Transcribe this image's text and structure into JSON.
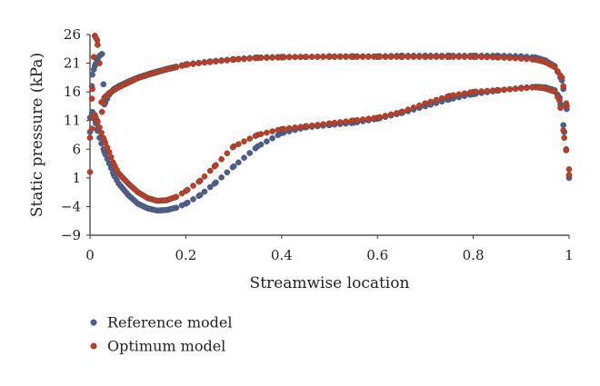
{
  "chart_data": {
    "type": "scatter",
    "xlabel": "Streamwise location",
    "ylabel": "Static pressure (kPa)",
    "xlim": [
      0,
      1
    ],
    "ylim": [
      -9,
      26
    ],
    "xticks": [
      0,
      0.2,
      0.4,
      0.6,
      0.8,
      1
    ],
    "xtick_labels": [
      "0",
      "0.2",
      "0.4",
      "0.6",
      "0.8",
      "1"
    ],
    "yticks": [
      26,
      21,
      16,
      11,
      6,
      1,
      -4,
      -9
    ],
    "ytick_labels": [
      "26",
      "21",
      "16",
      "11",
      "6",
      "1",
      "−4",
      "−9"
    ],
    "grid": false,
    "legend_position": "bottom-left",
    "series": [
      {
        "name": "Reference model",
        "color": "#4a5f91",
        "upper": {
          "x": [
            0.0,
            0.005,
            0.01,
            0.015,
            0.02,
            0.025,
            0.03,
            0.04,
            0.05,
            0.06,
            0.08,
            0.1,
            0.13,
            0.16,
            0.2,
            0.25,
            0.3,
            0.35,
            0.4,
            0.45,
            0.5,
            0.55,
            0.6,
            0.65,
            0.7,
            0.75,
            0.8,
            0.85,
            0.9,
            0.93,
            0.95,
            0.97,
            0.985,
            0.995,
            1.0
          ],
          "y": [
            9,
            19,
            20.5,
            21.5,
            22.3,
            22.6,
            13.8,
            15.5,
            16.5,
            17,
            17.8,
            18.5,
            19.3,
            20,
            20.8,
            21.3,
            21.7,
            22,
            22.1,
            22.1,
            22.2,
            22.2,
            22.2,
            22.3,
            22.3,
            22.3,
            22.3,
            22.3,
            22.2,
            22,
            21.5,
            20.5,
            18,
            13,
            1
          ]
        },
        "lower": {
          "x": [
            0.0,
            0.005,
            0.01,
            0.015,
            0.02,
            0.03,
            0.04,
            0.05,
            0.06,
            0.08,
            0.1,
            0.12,
            0.14,
            0.16,
            0.18,
            0.2,
            0.23,
            0.26,
            0.3,
            0.35,
            0.4,
            0.45,
            0.5,
            0.55,
            0.6,
            0.65,
            0.7,
            0.75,
            0.8,
            0.85,
            0.9,
            0.93,
            0.95,
            0.97,
            0.98,
            0.99,
            1.0
          ],
          "y": [
            11.5,
            12.5,
            11.2,
            9.5,
            8,
            5.5,
            3.5,
            1.5,
            0,
            -2,
            -3.5,
            -4.3,
            -4.7,
            -4.6,
            -4.2,
            -3.5,
            -2,
            0,
            3,
            6.5,
            8.8,
            9.8,
            10.2,
            10.6,
            11.3,
            12.3,
            13.5,
            14.7,
            15.6,
            16.2,
            16.7,
            16.9,
            16.8,
            16.3,
            15,
            9,
            1.5
          ]
        }
      },
      {
        "name": "Optimum model",
        "color": "#c23b22",
        "upper": {
          "x": [
            0.0,
            0.005,
            0.01,
            0.015,
            0.02,
            0.025,
            0.03,
            0.04,
            0.05,
            0.06,
            0.08,
            0.1,
            0.13,
            0.16,
            0.2,
            0.25,
            0.3,
            0.35,
            0.4,
            0.45,
            0.5,
            0.55,
            0.6,
            0.65,
            0.7,
            0.75,
            0.8,
            0.85,
            0.9,
            0.93,
            0.95,
            0.97,
            0.985,
            0.995,
            1.0
          ],
          "y": [
            8,
            16.5,
            25.8,
            25,
            21,
            12.5,
            15,
            15.8,
            16.3,
            16.8,
            17.6,
            18.4,
            19.2,
            19.9,
            20.7,
            21.2,
            21.6,
            21.9,
            22,
            22.1,
            22.1,
            22.1,
            22.1,
            22.1,
            22.1,
            22.1,
            22.1,
            22,
            21.8,
            21.6,
            21.2,
            20.3,
            18.5,
            13.5,
            1.5
          ]
        },
        "lower": {
          "x": [
            0.0,
            0.005,
            0.01,
            0.015,
            0.02,
            0.03,
            0.04,
            0.05,
            0.06,
            0.08,
            0.1,
            0.12,
            0.14,
            0.16,
            0.18,
            0.2,
            0.23,
            0.26,
            0.3,
            0.35,
            0.4,
            0.45,
            0.5,
            0.55,
            0.6,
            0.65,
            0.7,
            0.75,
            0.8,
            0.85,
            0.9,
            0.93,
            0.95,
            0.97,
            0.98,
            0.99,
            1.0
          ],
          "y": [
            2,
            11.5,
            12,
            11,
            9.8,
            7.5,
            5.5,
            3.3,
            1.8,
            0,
            -1.5,
            -2.5,
            -3,
            -2.9,
            -2.3,
            -1.3,
            0.5,
            3,
            6.5,
            8.5,
            9.5,
            10,
            10.5,
            11,
            11.5,
            12.5,
            14,
            15.3,
            16,
            16.3,
            16.6,
            16.8,
            16.6,
            16,
            14.5,
            8,
            2.5
          ]
        }
      }
    ]
  }
}
